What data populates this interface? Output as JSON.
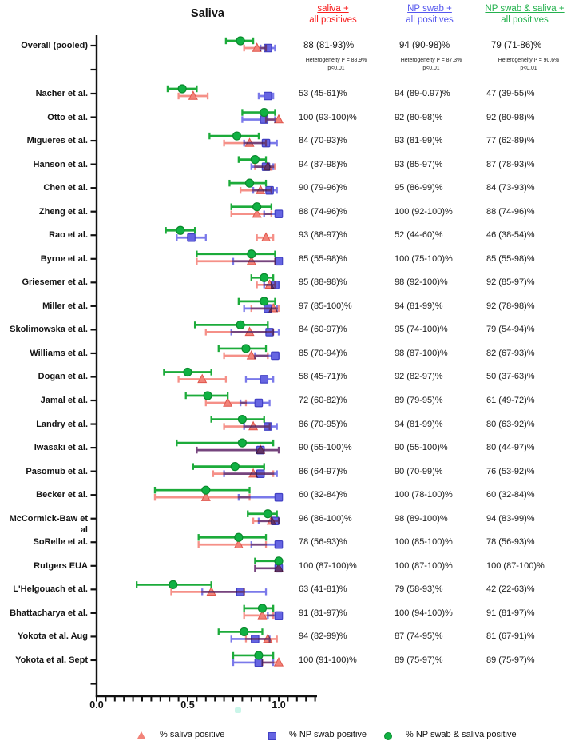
{
  "title": "Saliva",
  "columns": [
    {
      "line1": "saliva +",
      "line2": "all positives",
      "color": "#f81d1d"
    },
    {
      "line1": "NP swab +",
      "line2": "all positives",
      "color": "#5456ee"
    },
    {
      "line1": "NP swab & saliva +",
      "line2": "all positives",
      "color": "#23b14d"
    }
  ],
  "legend": [
    {
      "label": "% saliva positive",
      "marker": "triangle-icon",
      "color": "#f28379"
    },
    {
      "label": "% NP swab positive",
      "marker": "square-icon",
      "color": "#6665e2"
    },
    {
      "label": "% NP swab & saliva positive",
      "marker": "circle-icon",
      "color": "#10b143"
    }
  ],
  "chart_data": {
    "type": "scatter",
    "subtype": "forest-plot",
    "title": "Saliva",
    "xlim": [
      0,
      1.2
    ],
    "x_tick_labels": [
      "0.0",
      "0.5",
      "1.0"
    ],
    "x_tick_values": [
      0,
      0.5,
      1.0
    ],
    "minor_tick_step": 0.05,
    "series_names": [
      "% saliva positive",
      "% NP swab positive",
      "% NP swab & saliva positive"
    ],
    "overall": {
      "label": "Overall (pooled)",
      "values": [
        "88 (81-93)%",
        "94 (90-98)%",
        "79 (71-86)%"
      ],
      "saliva": [
        88,
        81,
        93
      ],
      "np": [
        94,
        90,
        98
      ],
      "both": [
        79,
        71,
        86
      ],
      "heterogeneity": [
        {
          "line1": "Heterogeneity I² = 88.9%",
          "line2": "p<0.01"
        },
        {
          "line1": "Heterogeneity I² = 87.3%",
          "line2": "p<0.01"
        },
        {
          "line1": "Heterogeneity I² = 90.6%",
          "line2": "p<0.01"
        }
      ]
    },
    "studies": [
      {
        "name": "Nacher et al.",
        "values": [
          "53 (45-61)%",
          "94 (89-0.97)%",
          "47 (39-55)%"
        ],
        "saliva": [
          53,
          45,
          61
        ],
        "np": [
          94,
          89,
          97
        ],
        "both": [
          47,
          39,
          55
        ]
      },
      {
        "name": "Otto et al.",
        "values": [
          "100 (93-100)%",
          "92 (80-98)%",
          "92 (80-98)%"
        ],
        "saliva": [
          100,
          93,
          100
        ],
        "np": [
          92,
          80,
          98
        ],
        "both": [
          92,
          80,
          98
        ]
      },
      {
        "name": "Migueres et al.",
        "values": [
          "84 (70-93)%",
          "93 (81-99)%",
          "77 (62-89)%"
        ],
        "saliva": [
          84,
          70,
          93
        ],
        "np": [
          93,
          81,
          99
        ],
        "both": [
          77,
          62,
          89
        ]
      },
      {
        "name": "Hanson et al.",
        "values": [
          "94 (87-98)%",
          "93 (85-97)%",
          "87 (78-93)%"
        ],
        "saliva": [
          94,
          87,
          98
        ],
        "np": [
          93,
          85,
          97
        ],
        "both": [
          87,
          78,
          93
        ]
      },
      {
        "name": "Chen et al.",
        "values": [
          "90 (79-96)%",
          "95 (86-99)%",
          "84 (73-93)%"
        ],
        "saliva": [
          90,
          79,
          96
        ],
        "np": [
          95,
          86,
          99
        ],
        "both": [
          84,
          73,
          93
        ]
      },
      {
        "name": "Zheng et al.",
        "values": [
          "88 (74-96)%",
          "100 (92-100)%",
          "88 (74-96)%"
        ],
        "saliva": [
          88,
          74,
          96
        ],
        "np": [
          100,
          92,
          100
        ],
        "both": [
          88,
          74,
          96
        ]
      },
      {
        "name": "Rao et al.",
        "values": [
          "93 (88-97)%",
          "52 (44-60)%",
          "46 (38-54)%"
        ],
        "saliva": [
          93,
          88,
          97
        ],
        "np": [
          52,
          44,
          60
        ],
        "both": [
          46,
          38,
          54
        ]
      },
      {
        "name": "Byrne et al.",
        "values": [
          "85 (55-98)%",
          "100 (75-100)%",
          "85 (55-98)%"
        ],
        "saliva": [
          85,
          55,
          98
        ],
        "np": [
          100,
          75,
          100
        ],
        "both": [
          85,
          55,
          98
        ]
      },
      {
        "name": "Griesemer et al.",
        "values": [
          "95 (88-98)%",
          "98 (92-100)%",
          "92 (85-97)%"
        ],
        "saliva": [
          95,
          88,
          98
        ],
        "np": [
          98,
          92,
          100
        ],
        "both": [
          92,
          85,
          97
        ]
      },
      {
        "name": "Miller et al.",
        "values": [
          "97 (85-100)%",
          "94 (81-99)%",
          "92 (78-98)%"
        ],
        "saliva": [
          97,
          85,
          100
        ],
        "np": [
          94,
          81,
          99
        ],
        "both": [
          92,
          78,
          98
        ]
      },
      {
        "name": "Skolimowska et al.",
        "values": [
          "84 (60-97)%",
          "95 (74-100)%",
          "79 (54-94)%"
        ],
        "saliva": [
          84,
          60,
          97
        ],
        "np": [
          95,
          74,
          100
        ],
        "both": [
          79,
          54,
          94
        ]
      },
      {
        "name": "Williams et al.",
        "values": [
          "85 (70-94)%",
          "98 (87-100)%",
          "82 (67-93)%"
        ],
        "saliva": [
          85,
          70,
          94
        ],
        "np": [
          98,
          87,
          100
        ],
        "both": [
          82,
          67,
          93
        ]
      },
      {
        "name": "Dogan et al.",
        "values": [
          "58 (45-71)%",
          "92 (82-97)%",
          "50 (37-63)%"
        ],
        "saliva": [
          58,
          45,
          71
        ],
        "np": [
          92,
          82,
          97
        ],
        "both": [
          50,
          37,
          63
        ]
      },
      {
        "name": "Jamal et al.",
        "values": [
          "72 (60-82)%",
          "89 (79-95)%",
          "61 (49-72)%"
        ],
        "saliva": [
          72,
          60,
          82
        ],
        "np": [
          89,
          79,
          95
        ],
        "both": [
          61,
          49,
          72
        ]
      },
      {
        "name": "Landry et al.",
        "values": [
          "86 (70-95)%",
          "94 (81-99)%",
          "80 (63-92)%"
        ],
        "saliva": [
          86,
          70,
          95
        ],
        "np": [
          94,
          81,
          99
        ],
        "both": [
          80,
          63,
          92
        ]
      },
      {
        "name": "Iwasaki et al.",
        "values": [
          "90 (55-100)%",
          "90 (55-100)%",
          "80 (44-97)%"
        ],
        "saliva": [
          90,
          55,
          100
        ],
        "np": [
          90,
          55,
          100
        ],
        "both": [
          80,
          44,
          97
        ]
      },
      {
        "name": "Pasomub et al.",
        "values": [
          "86 (64-97)%",
          "90 (70-99)%",
          "76 (53-92)%"
        ],
        "saliva": [
          86,
          64,
          97
        ],
        "np": [
          90,
          70,
          99
        ],
        "both": [
          76,
          53,
          92
        ]
      },
      {
        "name": "Becker et al.",
        "values": [
          "60 (32-84)%",
          "100 (78-100)%",
          "60 (32-84)%"
        ],
        "saliva": [
          60,
          32,
          84
        ],
        "np": [
          100,
          78,
          100
        ],
        "both": [
          60,
          32,
          84
        ]
      },
      {
        "name": "McCormick-Baw et al",
        "values": [
          "96 (86-100)%",
          "98 (89-100)%",
          "94 (83-99)%"
        ],
        "saliva": [
          96,
          86,
          100
        ],
        "np": [
          98,
          89,
          100
        ],
        "both": [
          94,
          83,
          99
        ]
      },
      {
        "name": "SoRelle et al.",
        "values": [
          "78 (56-93)%",
          "100 (85-100)%",
          "78 (56-93)%"
        ],
        "saliva": [
          78,
          56,
          93
        ],
        "np": [
          100,
          85,
          100
        ],
        "both": [
          78,
          56,
          93
        ]
      },
      {
        "name": "Rutgers EUA",
        "values": [
          "100 (87-100)%",
          "100 (87-100)%",
          "100 (87-100)%"
        ],
        "saliva": [
          100,
          87,
          100
        ],
        "np": [
          100,
          87,
          100
        ],
        "both": [
          100,
          87,
          100
        ]
      },
      {
        "name": "L'Helgouach et al.",
        "values": [
          "63 (41-81)%",
          "79 (58-93)%",
          "42 (22-63)%"
        ],
        "saliva": [
          63,
          41,
          81
        ],
        "np": [
          79,
          58,
          93
        ],
        "both": [
          42,
          22,
          63
        ]
      },
      {
        "name": "Bhattacharya et al.",
        "values": [
          "91 (81-97)%",
          "100 (94-100)%",
          "91 (81-97)%"
        ],
        "saliva": [
          91,
          81,
          97
        ],
        "np": [
          100,
          94,
          100
        ],
        "both": [
          91,
          81,
          97
        ]
      },
      {
        "name": "Yokota et al. Aug",
        "values": [
          "94 (82-99)%",
          "87 (74-95)%",
          "81 (67-91)%"
        ],
        "saliva": [
          94,
          82,
          99
        ],
        "np": [
          87,
          74,
          95
        ],
        "both": [
          81,
          67,
          91
        ]
      },
      {
        "name": "Yokota et al. Sept",
        "values": [
          "100 (91-100)%",
          "89 (75-97)%",
          "89 (75-97)%"
        ],
        "saliva": [
          100,
          91,
          100
        ],
        "np": [
          89,
          75,
          97
        ],
        "both": [
          89,
          75,
          97
        ]
      }
    ]
  }
}
